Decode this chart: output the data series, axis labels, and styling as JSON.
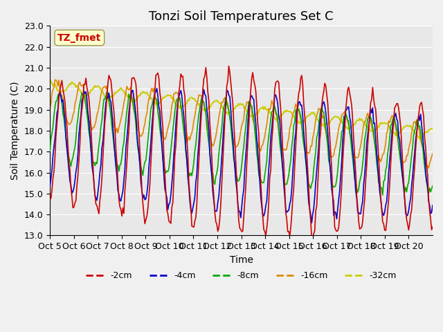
{
  "title": "Tonzi Soil Temperatures Set C",
  "xlabel": "Time",
  "ylabel": "Soil Temperature (C)",
  "ylim": [
    13.0,
    23.0
  ],
  "yticks": [
    13.0,
    14.0,
    15.0,
    16.0,
    17.0,
    18.0,
    19.0,
    20.0,
    21.0,
    22.0,
    23.0
  ],
  "xtick_labels": [
    "Oct 5",
    "Oct 6",
    "Oct 7",
    "Oct 8",
    "Oct 9",
    "Oct 10",
    "Oct 11",
    "Oct 12",
    "Oct 13",
    "Oct 14",
    "Oct 15",
    "Oct 16",
    "Oct 17",
    "Oct 18",
    "Oct 19",
    "Oct 20"
  ],
  "series_colors": [
    "#cc0000",
    "#0000cc",
    "#00aa00",
    "#dd8800",
    "#cccc00"
  ],
  "series_labels": [
    "-2cm",
    "-4cm",
    "-8cm",
    "-16cm",
    "-32cm"
  ],
  "annotation_text": "TZ_fmet",
  "annotation_color": "#cc0000",
  "annotation_bg": "#ffffcc",
  "fig_bg": "#f0f0f0",
  "plot_bg": "#e8e8e8",
  "grid_color": "#ffffff",
  "title_fontsize": 13,
  "label_fontsize": 10,
  "tick_fontsize": 9,
  "n_days": 16,
  "pts_per_day": 24
}
